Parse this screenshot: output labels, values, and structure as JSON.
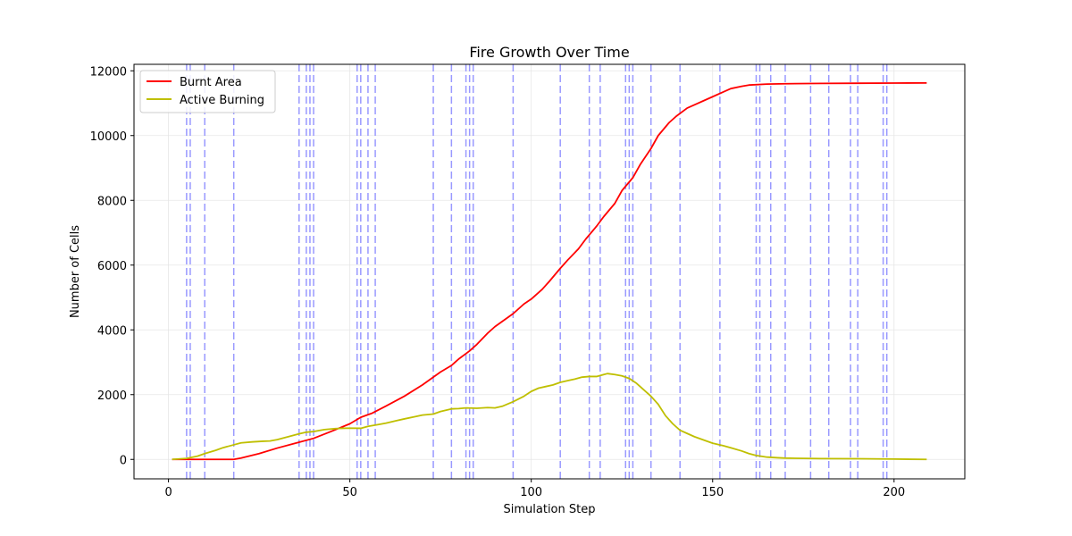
{
  "chart_data": {
    "type": "line",
    "title": "Fire Growth Over Time",
    "xlabel": "Simulation Step",
    "ylabel": "Number of Cells",
    "xlim": [
      -9.5,
      219.5
    ],
    "ylim": [
      -600,
      12200
    ],
    "xticks": [
      0,
      50,
      100,
      150,
      200
    ],
    "yticks": [
      0,
      2000,
      4000,
      6000,
      8000,
      10000,
      12000
    ],
    "grid": true,
    "legend": "top-left",
    "series": [
      {
        "name": "Burnt Area",
        "color": "#ff0000",
        "points": [
          [
            1,
            0
          ],
          [
            5,
            0
          ],
          [
            10,
            0
          ],
          [
            15,
            0
          ],
          [
            18,
            0
          ],
          [
            20,
            40
          ],
          [
            25,
            180
          ],
          [
            30,
            350
          ],
          [
            35,
            500
          ],
          [
            40,
            650
          ],
          [
            45,
            870
          ],
          [
            50,
            1100
          ],
          [
            53,
            1300
          ],
          [
            56,
            1420
          ],
          [
            60,
            1650
          ],
          [
            65,
            1950
          ],
          [
            70,
            2300
          ],
          [
            75,
            2700
          ],
          [
            78,
            2900
          ],
          [
            80,
            3100
          ],
          [
            83,
            3350
          ],
          [
            85,
            3550
          ],
          [
            88,
            3900
          ],
          [
            90,
            4100
          ],
          [
            95,
            4500
          ],
          [
            98,
            4800
          ],
          [
            100,
            4950
          ],
          [
            103,
            5250
          ],
          [
            105,
            5500
          ],
          [
            108,
            5900
          ],
          [
            110,
            6150
          ],
          [
            113,
            6500
          ],
          [
            115,
            6800
          ],
          [
            118,
            7200
          ],
          [
            120,
            7500
          ],
          [
            123,
            7900
          ],
          [
            125,
            8300
          ],
          [
            128,
            8700
          ],
          [
            130,
            9100
          ],
          [
            133,
            9600
          ],
          [
            135,
            10000
          ],
          [
            138,
            10400
          ],
          [
            140,
            10600
          ],
          [
            143,
            10850
          ],
          [
            145,
            10950
          ],
          [
            148,
            11100
          ],
          [
            150,
            11200
          ],
          [
            153,
            11350
          ],
          [
            155,
            11450
          ],
          [
            158,
            11520
          ],
          [
            160,
            11560
          ],
          [
            165,
            11590
          ],
          [
            170,
            11600
          ],
          [
            180,
            11610
          ],
          [
            190,
            11615
          ],
          [
            200,
            11620
          ],
          [
            209,
            11625
          ]
        ]
      },
      {
        "name": "Active Burning",
        "color": "#bfbf00",
        "points": [
          [
            1,
            0
          ],
          [
            5,
            30
          ],
          [
            8,
            100
          ],
          [
            10,
            180
          ],
          [
            13,
            280
          ],
          [
            15,
            360
          ],
          [
            18,
            450
          ],
          [
            20,
            510
          ],
          [
            23,
            540
          ],
          [
            26,
            560
          ],
          [
            28,
            570
          ],
          [
            30,
            610
          ],
          [
            33,
            700
          ],
          [
            36,
            790
          ],
          [
            38,
            840
          ],
          [
            40,
            860
          ],
          [
            43,
            920
          ],
          [
            46,
            950
          ],
          [
            48,
            960
          ],
          [
            50,
            965
          ],
          [
            53,
            960
          ],
          [
            55,
            1020
          ],
          [
            58,
            1080
          ],
          [
            60,
            1120
          ],
          [
            63,
            1200
          ],
          [
            65,
            1250
          ],
          [
            68,
            1320
          ],
          [
            70,
            1370
          ],
          [
            73,
            1400
          ],
          [
            75,
            1480
          ],
          [
            78,
            1560
          ],
          [
            80,
            1570
          ],
          [
            82,
            1590
          ],
          [
            85,
            1580
          ],
          [
            88,
            1600
          ],
          [
            90,
            1590
          ],
          [
            92,
            1640
          ],
          [
            95,
            1780
          ],
          [
            98,
            1950
          ],
          [
            100,
            2100
          ],
          [
            102,
            2200
          ],
          [
            104,
            2250
          ],
          [
            106,
            2300
          ],
          [
            108,
            2380
          ],
          [
            110,
            2430
          ],
          [
            112,
            2480
          ],
          [
            114,
            2540
          ],
          [
            116,
            2560
          ],
          [
            118,
            2560
          ],
          [
            120,
            2620
          ],
          [
            121,
            2650
          ],
          [
            123,
            2620
          ],
          [
            125,
            2580
          ],
          [
            127,
            2500
          ],
          [
            129,
            2350
          ],
          [
            131,
            2150
          ],
          [
            133,
            1950
          ],
          [
            135,
            1700
          ],
          [
            137,
            1350
          ],
          [
            139,
            1100
          ],
          [
            141,
            900
          ],
          [
            143,
            800
          ],
          [
            145,
            700
          ],
          [
            148,
            580
          ],
          [
            150,
            500
          ],
          [
            153,
            420
          ],
          [
            155,
            360
          ],
          [
            158,
            260
          ],
          [
            160,
            180
          ],
          [
            162,
            120
          ],
          [
            165,
            70
          ],
          [
            168,
            50
          ],
          [
            170,
            40
          ],
          [
            175,
            30
          ],
          [
            180,
            25
          ],
          [
            190,
            20
          ],
          [
            200,
            10
          ],
          [
            209,
            0
          ]
        ]
      }
    ],
    "vlines": {
      "color": "#9999ff",
      "positions": [
        5,
        6,
        10,
        18,
        36,
        38,
        39,
        40,
        52,
        53,
        55,
        57,
        73,
        78,
        82,
        83,
        84,
        95,
        108,
        116,
        119,
        126,
        127,
        128,
        133,
        141,
        152,
        162,
        163,
        166,
        170,
        177,
        182,
        188,
        190,
        197,
        198
      ]
    }
  }
}
